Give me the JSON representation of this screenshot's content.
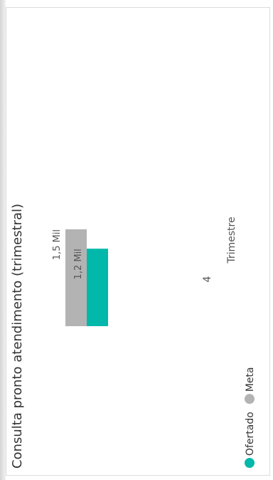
{
  "chart_data": {
    "type": "bar",
    "orientation": "rotated-90-ccw",
    "title": "Consulta pronto atendimento (trimestral)",
    "xlabel": "Trimestre",
    "ylabel": "",
    "categories": [
      "4"
    ],
    "series": [
      {
        "name": "Ofertado",
        "values": [
          1200
        ],
        "data_labels": [
          "1,2 Mil"
        ],
        "color": "#01b8aa"
      },
      {
        "name": "Meta",
        "values": [
          1500
        ],
        "data_labels": [
          "1,5 Mil"
        ],
        "color": "#b3b3b3"
      }
    ],
    "ylim": [
      0,
      1500
    ],
    "grid": false,
    "legend": {
      "position": "bottom-left",
      "entries": [
        "Ofertado",
        "Meta"
      ]
    }
  },
  "colors": {
    "text": "#333333",
    "ofertado": "#01b8aa",
    "meta": "#b3b3b3"
  }
}
